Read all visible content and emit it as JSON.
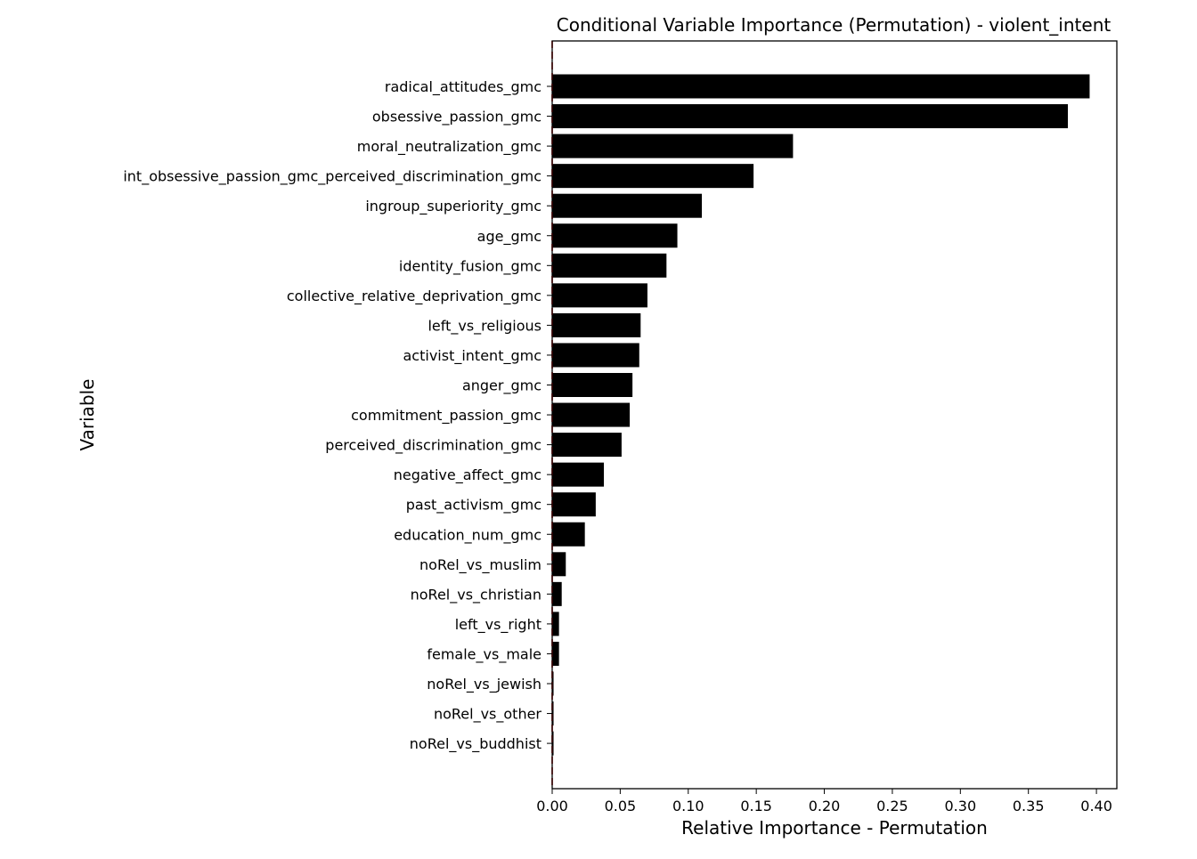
{
  "chart_data": {
    "type": "bar",
    "orientation": "horizontal",
    "title": "Conditional Variable Importance (Permutation) - violent_intent",
    "xlabel": "Relative Importance - Permutation",
    "ylabel": "Variable",
    "xlim": [
      0.0,
      0.415
    ],
    "xticks": [
      "0.00",
      "0.05",
      "0.10",
      "0.15",
      "0.20",
      "0.25",
      "0.30",
      "0.35",
      "0.40"
    ],
    "grid": false,
    "bar_color": "#000000",
    "reference_line": {
      "x": 0.0,
      "color": "#cc0000",
      "style": "dashed"
    },
    "categories": [
      "radical_attitudes_gmc",
      "obsessive_passion_gmc",
      "moral_neutralization_gmc",
      "int_obsessive_passion_gmc_perceived_discrimination_gmc",
      "ingroup_superiority_gmc",
      "age_gmc",
      "identity_fusion_gmc",
      "collective_relative_deprivation_gmc",
      "left_vs_religious",
      "activist_intent_gmc",
      "anger_gmc",
      "commitment_passion_gmc",
      "perceived_discrimination_gmc",
      "negative_affect_gmc",
      "past_activism_gmc",
      "education_num_gmc",
      "noRel_vs_muslim",
      "noRel_vs_christian",
      "left_vs_right",
      "female_vs_male",
      "noRel_vs_jewish",
      "noRel_vs_other",
      "noRel_vs_buddhist"
    ],
    "values": [
      0.395,
      0.379,
      0.177,
      0.148,
      0.11,
      0.092,
      0.084,
      0.07,
      0.065,
      0.064,
      0.059,
      0.057,
      0.051,
      0.038,
      0.032,
      0.024,
      0.01,
      0.007,
      0.005,
      0.005,
      0.001,
      0.001,
      0.001
    ]
  }
}
